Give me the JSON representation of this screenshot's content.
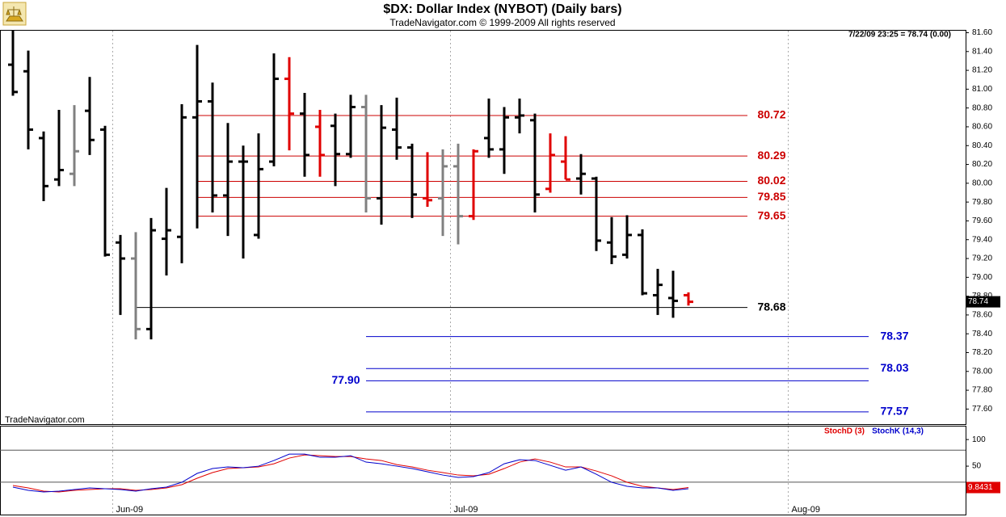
{
  "chart_data": [
    {
      "type": "ohlc",
      "title": "$DX:  Dollar Index (NYBOT)  (Daily bars)",
      "subtitle": "TradeNavigator.com © 1999-2009 All rights reserved",
      "status_text": "7/22/09 23:25 = 78.74 (0.00)",
      "watermark": "TradeNavigator.com",
      "ylim": [
        77.44,
        81.63
      ],
      "yticks": [
        {
          "value": 77.6,
          "label": "77.60"
        },
        {
          "value": 77.8,
          "label": "77.80"
        },
        {
          "value": 78,
          "label": "78.00"
        },
        {
          "value": 78.2,
          "label": "78.20"
        },
        {
          "value": 78.4,
          "label": "78.40"
        },
        {
          "value": 78.6,
          "label": "78.60"
        },
        {
          "value": 78.8,
          "label": "78.80"
        },
        {
          "value": 79,
          "label": "79.00"
        },
        {
          "value": 79.2,
          "label": "79.20"
        },
        {
          "value": 79.4,
          "label": "79.40"
        },
        {
          "value": 79.6,
          "label": "79.60"
        },
        {
          "value": 79.8,
          "label": "79.80"
        },
        {
          "value": 80,
          "label": "80.00"
        },
        {
          "value": 80.2,
          "label": "80.20"
        },
        {
          "value": 80.4,
          "label": "80.40"
        },
        {
          "value": 80.6,
          "label": "80.60"
        },
        {
          "value": 80.8,
          "label": "80.80"
        },
        {
          "value": 81,
          "label": "81.00"
        },
        {
          "value": 81.2,
          "label": "81.20"
        },
        {
          "value": 81.4,
          "label": "81.40"
        },
        {
          "value": 81.6,
          "label": "81.60"
        }
      ],
      "open": [
        81.26,
        81.19,
        80.48,
        80.04,
        80.1,
        80.77,
        80.57,
        79.37,
        79.2,
        78.45,
        79.41,
        79.43,
        80.7,
        80.87,
        79.87,
        80.23,
        79.45,
        80.23,
        81.11,
        80.74,
        80.6,
        80.61,
        80.31,
        80.81,
        79.84,
        80.57,
        80.38,
        79.84,
        79.84,
        80.18,
        79.65,
        80.48,
        80.36,
        80.7,
        80.67,
        79.94,
        80.23,
        80.05,
        80.05,
        79.37,
        79.24,
        79.45,
        78.81,
        78.78,
        78.81,
        null,
        null,
        null,
        null,
        null,
        null,
        null,
        null,
        null,
        null,
        null,
        null,
        null,
        null,
        null,
        null,
        null
      ],
      "high": [
        81.63,
        81.41,
        80.55,
        80.78,
        80.83,
        81.13,
        80.61,
        79.45,
        79.48,
        79.63,
        79.95,
        80.84,
        81.47,
        81.07,
        80.64,
        80.4,
        80.53,
        81.38,
        81.34,
        80.96,
        80.78,
        80.74,
        80.94,
        80.94,
        80.83,
        80.91,
        80.42,
        80.33,
        80.36,
        80.42,
        80.36,
        80.9,
        80.81,
        80.9,
        80.74,
        80.53,
        80.5,
        80.31,
        80.07,
        79.64,
        79.66,
        79.51,
        79.09,
        79.07,
        78.84,
        null,
        null,
        null,
        null,
        null,
        null,
        null,
        null,
        null,
        null,
        null,
        null,
        null,
        null,
        null,
        null,
        null
      ],
      "low": [
        80.93,
        80.36,
        79.81,
        79.97,
        79.97,
        80.3,
        79.22,
        78.6,
        78.34,
        78.34,
        79.02,
        79.15,
        79.52,
        79.69,
        79.44,
        79.2,
        79.41,
        80.18,
        80.35,
        80.07,
        80.07,
        79.97,
        80.27,
        79.69,
        79.56,
        80.25,
        79.63,
        79.75,
        79.44,
        79.35,
        79.61,
        80.27,
        80.1,
        80.53,
        79.69,
        79.9,
        80.04,
        79.88,
        79.28,
        79.14,
        79.2,
        78.81,
        78.6,
        78.57,
        78.7,
        null,
        null,
        null,
        null,
        null,
        null,
        null,
        null,
        null,
        null,
        null,
        null,
        null,
        null,
        null,
        null,
        null
      ],
      "close": [
        80.97,
        80.57,
        79.97,
        80.14,
        80.34,
        80.46,
        79.24,
        79.2,
        78.45,
        79.5,
        79.5,
        80.7,
        80.87,
        79.87,
        80.23,
        80.23,
        80.15,
        81.11,
        80.74,
        80.3,
        80.3,
        80.31,
        80.81,
        79.84,
        80.59,
        80.38,
        79.88,
        79.82,
        80.18,
        79.65,
        80.34,
        80.36,
        80.7,
        80.72,
        79.88,
        80.3,
        80.04,
        80.1,
        79.39,
        79.22,
        79.45,
        78.83,
        78.92,
        78.75,
        78.74,
        null,
        null,
        null,
        null,
        null,
        null,
        null,
        null,
        null,
        null,
        null,
        null,
        null,
        null,
        null,
        null,
        null
      ],
      "colors": [
        "#000000",
        "#000000",
        "#000000",
        "#000000",
        "#808080",
        "#000000",
        "#000000",
        "#000000",
        "#808080",
        "#000000",
        "#000000",
        "#000000",
        "#000000",
        "#000000",
        "#000000",
        "#000000",
        "#000000",
        "#000000",
        "#e00000",
        "#000000",
        "#e00000",
        "#000000",
        "#000000",
        "#808080",
        "#000000",
        "#000000",
        "#000000",
        "#e00000",
        "#808080",
        "#808080",
        "#e00000",
        "#000000",
        "#000000",
        "#000000",
        "#000000",
        "#e00000",
        "#e00000",
        "#000000",
        "#000000",
        "#000000",
        "#000000",
        "#000000",
        "#000000",
        "#000000",
        "#e00000",
        null,
        null,
        null,
        null,
        null,
        null,
        null,
        null,
        null,
        null,
        null,
        null,
        null,
        null,
        null,
        null,
        null
      ],
      "current_value": 78.74,
      "levels": [
        {
          "value": 80.72,
          "color": "#cc0000"
        },
        {
          "value": 80.29,
          "color": "#cc0000"
        },
        {
          "value": 80.02,
          "color": "#cc0000"
        },
        {
          "value": 79.85,
          "color": "#cc0000"
        },
        {
          "value": 79.65,
          "color": "#cc0000"
        },
        {
          "value": 78.68,
          "color": "#000000"
        },
        {
          "value": 78.37,
          "color": "#0000cc"
        },
        {
          "value": 78.03,
          "color": "#0000cc"
        },
        {
          "value": {
            "value": 77.9,
            "label": "77.90"
          },
          "color": "#0000cc"
        },
        {
          "value": 77.57,
          "color": "#0000cc"
        }
      ]
    },
    {
      "type": "line",
      "categories": [
        null,
        null,
        null,
        null,
        null,
        null,
        null,
        "Jun-09",
        null,
        null,
        null,
        null,
        null,
        null,
        null,
        null,
        null,
        null,
        null,
        null,
        null,
        null,
        null,
        null,
        null,
        null,
        null,
        null,
        null,
        "Jul-09",
        null,
        null,
        null,
        null,
        null,
        null,
        null,
        null,
        null,
        null,
        null,
        null,
        null,
        null,
        null,
        null,
        null,
        null,
        null,
        null,
        null,
        "Aug-09",
        null,
        null,
        null,
        null,
        null,
        null,
        null,
        null,
        null,
        null
      ],
      "ylim": [
        -41,
        126
      ],
      "yticks": [
        50,
        100
      ],
      "ref_lines": [
        80,
        20
      ],
      "last_value": 9.8431,
      "series": [
        {
          "name": "StochD (3)",
          "color": "#e00000",
          "values": [
            13.6,
            9.1,
            3.0,
            1.5,
            4.5,
            6.1,
            7.6,
            7.6,
            4.5,
            6.1,
            9.1,
            15.2,
            27.3,
            37.9,
            45.5,
            47.0,
            48.5,
            54.5,
            65.2,
            71.2,
            69.7,
            68.2,
            68.2,
            63.6,
            60.6,
            53.0,
            48.5,
            42.4,
            37.9,
            33.3,
            31.8,
            34.8,
            45.5,
            57.6,
            63.6,
            57.6,
            48.5,
            48.5,
            40.9,
            31.8,
            19.7,
            12.1,
            9.1,
            6.1,
            9.8,
            null,
            null,
            null,
            null,
            null,
            null,
            null,
            null,
            null,
            null,
            null,
            null,
            null,
            null,
            null,
            null,
            null
          ]
        },
        {
          "name": "StochK (14,3)",
          "color": "#0000cc",
          "values": [
            10.6,
            4.5,
            1.5,
            3.0,
            6.1,
            9.1,
            7.6,
            6.1,
            3.0,
            7.6,
            10.6,
            19.7,
            36.4,
            45.5,
            48.5,
            47.0,
            50.0,
            60.6,
            72.7,
            72.7,
            66.7,
            66.7,
            69.7,
            57.6,
            54.5,
            50.0,
            45.5,
            39.4,
            33.3,
            28.8,
            30.3,
            37.9,
            54.5,
            62.1,
            60.6,
            51.5,
            42.4,
            48.5,
            34.8,
            19.7,
            12.1,
            9.1,
            9.1,
            4.5,
            7.6,
            null,
            null,
            null,
            null,
            null,
            null,
            null,
            null,
            null,
            null,
            null,
            null,
            null,
            null,
            null,
            null,
            null
          ]
        }
      ]
    }
  ]
}
